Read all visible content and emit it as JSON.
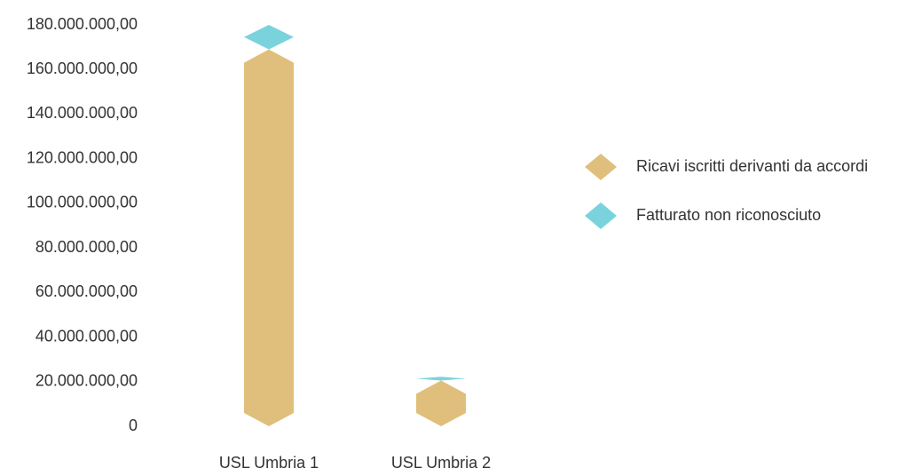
{
  "chart_data": {
    "type": "bar",
    "stacked": true,
    "categories": [
      "USL Umbria 1",
      "USL Umbria 2"
    ],
    "series": [
      {
        "name": "Ricavi iscritti derivanti da accordi",
        "color": "#e0bf7c",
        "values": [
          169000000,
          20500000
        ]
      },
      {
        "name": "Fatturato non riconosciuto",
        "color": "#7ad3dc",
        "values": [
          11000000,
          1700000
        ]
      }
    ],
    "ylim": [
      0,
      180000000
    ],
    "yticks": [
      0,
      {
        "value": 20000000,
        "label": "20.000.000,00"
      },
      {
        "value": 40000000,
        "label": "40.000.000,00"
      },
      {
        "value": 60000000,
        "label": "60.000.000,00"
      },
      {
        "value": 80000000,
        "label": "80.000.000,00"
      },
      {
        "value": 100000000,
        "label": "100.000.000,00"
      },
      {
        "value": 120000000,
        "label": "120.000.000,00"
      },
      {
        "value": 140000000,
        "label": "140.000.000,00"
      },
      {
        "value": 160000000,
        "label": "160.000.000,00"
      },
      {
        "value": 180000000,
        "label": "180.000.000,00"
      }
    ],
    "grid": false,
    "legend": "right"
  }
}
